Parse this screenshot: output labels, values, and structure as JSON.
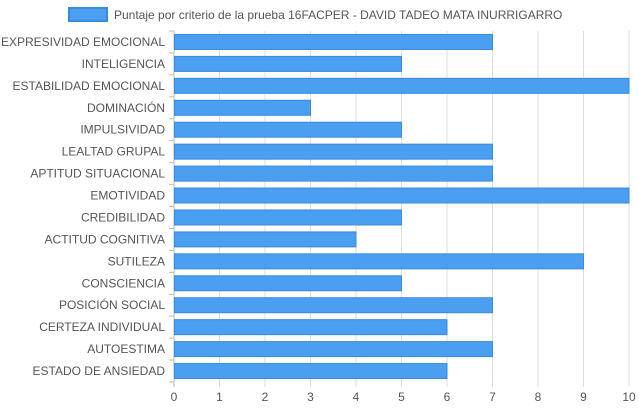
{
  "chart_data": {
    "type": "bar",
    "orientation": "horizontal",
    "categories": [
      "EXPRESIVIDAD EMOCIONAL",
      "INTELIGENCIA",
      "ESTABILIDAD EMOCIONAL",
      "DOMINACIÓN",
      "IMPULSIVIDAD",
      "LEALTAD GRUPAL",
      "APTITUD SITUACIONAL",
      "EMOTIVIDAD",
      "CREDIBILIDAD",
      "ACTITUD COGNITIVA",
      "SUTILEZA",
      "CONSCIENCIA",
      "POSICIÓN SOCIAL",
      "CERTEZA INDIVIDUAL",
      "AUTOESTIMA",
      "ESTADO DE ANSIEDAD"
    ],
    "series": [
      {
        "name": "Puntaje por criterio de la prueba 16FACPER - DAVID TADEO MATA INURRIGARRO",
        "values": [
          7,
          5,
          10,
          3,
          5,
          7,
          7,
          10,
          5,
          4,
          9,
          5,
          7,
          6,
          7,
          6
        ]
      }
    ],
    "xlim": [
      0,
      10
    ],
    "xticks": [
      "0",
      "1",
      "2",
      "3",
      "4",
      "5",
      "6",
      "7",
      "8",
      "9",
      "10"
    ],
    "grid": true,
    "legend_position": "top",
    "colors": {
      "bar_fill": "#4a9ff0",
      "bar_stroke": "#3a8ae0",
      "grid": "#dddddd",
      "axis": "#bbbbbb"
    }
  }
}
